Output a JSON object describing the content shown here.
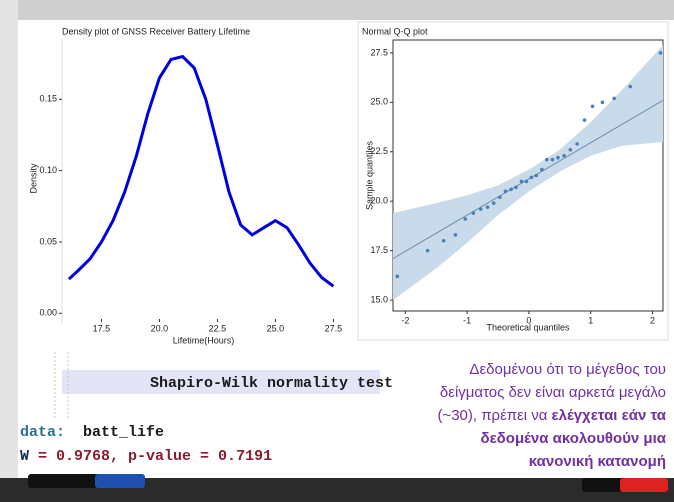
{
  "chart_data": [
    {
      "type": "line",
      "title": "Density plot of GNSS Receiver Battery Lifetime",
      "x_label": "Lifetime(Hours)",
      "y_label": "Density",
      "x": [
        16.1,
        16.5,
        17,
        17.5,
        18,
        18.5,
        19,
        19.5,
        20,
        20.5,
        21,
        21.5,
        22,
        22.5,
        23,
        23.5,
        24,
        24.5,
        25,
        25.5,
        26,
        26.5,
        27,
        27.5
      ],
      "values": [
        0.024,
        0.03,
        0.038,
        0.05,
        0.065,
        0.085,
        0.11,
        0.14,
        0.165,
        0.178,
        0.18,
        0.172,
        0.15,
        0.118,
        0.085,
        0.062,
        0.055,
        0.06,
        0.065,
        0.06,
        0.048,
        0.035,
        0.025,
        0.019
      ],
      "color": "#0000dd",
      "xlim": [
        15.8,
        28.0
      ],
      "ylim": [
        -0.004,
        0.193
      ],
      "xticks": [
        17.5,
        {
          "value": 20,
          "label": "20.0"
        },
        22.5,
        {
          "value": 25,
          "label": "25.0"
        },
        27.5
      ],
      "yticks": [
        {
          "value": 0,
          "label": "0.00"
        },
        {
          "value": 0.05,
          "label": "0.05"
        },
        {
          "value": 0.1,
          "label": "0.10"
        },
        {
          "value": 0.15,
          "label": "0.15"
        }
      ]
    },
    {
      "type": "scatter",
      "title": "Normal Q-Q plot",
      "x_label": "Theoretical quantiles",
      "y_label": "Sample quantiles",
      "x": [
        -2.13,
        -1.64,
        -1.38,
        -1.19,
        -1.03,
        -0.9,
        -0.78,
        -0.67,
        -0.57,
        -0.47,
        -0.38,
        -0.29,
        -0.21,
        -0.12,
        -0.04,
        0.04,
        0.12,
        0.21,
        0.29,
        0.38,
        0.47,
        0.57,
        0.67,
        0.78,
        0.9,
        1.03,
        1.19,
        1.38,
        1.64,
        2.13
      ],
      "values": [
        16.2,
        17.5,
        18.0,
        18.3,
        19.1,
        19.4,
        19.6,
        19.7,
        19.9,
        20.2,
        20.5,
        20.6,
        20.7,
        21.0,
        21.0,
        21.2,
        21.3,
        21.6,
        22.1,
        22.1,
        22.2,
        22.3,
        22.6,
        22.9,
        24.1,
        24.8,
        25.0,
        25.2,
        25.8,
        27.5
      ],
      "color": "#4a7fb5",
      "fit": {
        "x": [
          -2.2,
          2.17
        ],
        "values": [
          17.1,
          25.1
        ],
        "color": "#6a8caf"
      },
      "band": {
        "x": [
          -2.2,
          -1.5,
          -1,
          -0.5,
          0,
          0.5,
          1,
          1.5,
          2.17
        ],
        "lower": [
          15.0,
          16.6,
          17.9,
          19.3,
          20.5,
          21.5,
          22.3,
          22.8,
          23.0
        ],
        "upper": [
          19.4,
          19.9,
          20.3,
          20.8,
          21.6,
          22.6,
          24.0,
          25.6,
          27.9
        ],
        "color": "#c9daea"
      },
      "xlim": [
        -2.2,
        2.17
      ],
      "ylim": [
        14.7,
        27.9
      ],
      "xticks": [
        -2,
        -1,
        0,
        1,
        2
      ],
      "yticks": [
        {
          "value": 15,
          "label": "15.0"
        },
        17.5,
        {
          "value": 20,
          "label": "20.0"
        },
        22.5,
        {
          "value": 25,
          "label": "25.0"
        },
        27.5
      ]
    }
  ],
  "console": {
    "heading": "Shapiro-Wilk normality test",
    "data_key": "data:",
    "data_value": "batt_life",
    "stat_key": "W",
    "stat_value": "= 0.9768, p-value = 0.7191"
  },
  "note": {
    "color": "#7030a0",
    "lines": [
      [
        {
          "text": "Δεδομένου ότι το μέγεθος του",
          "bold": false
        }
      ],
      [
        {
          "text": "δείγματος δεν είναι αρκετά μεγάλο",
          "bold": false
        }
      ],
      [
        {
          "text": "(~30), πρέπει να",
          "bold": false
        },
        {
          "text": "ελέγχεται εάν τα",
          "bold": true
        }
      ],
      [
        {
          "text": "δεδομένα ακολουθούν μια",
          "bold": true
        }
      ],
      [
        {
          "text": "κανονική κατανομή",
          "bold": true
        }
      ]
    ]
  }
}
